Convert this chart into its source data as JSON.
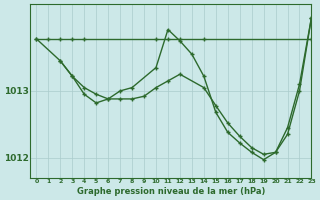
{
  "title": "Graphe pression niveau de la mer (hPa)",
  "bg_color": "#cce8e8",
  "line_color": "#2d6a2d",
  "grid_color": "#aacccc",
  "xlim": [
    -0.5,
    23
  ],
  "ylim": [
    1011.7,
    1014.3
  ],
  "yticks": [
    1012,
    1013
  ],
  "xticks": [
    0,
    1,
    2,
    3,
    4,
    5,
    6,
    7,
    8,
    9,
    10,
    11,
    12,
    13,
    14,
    15,
    16,
    17,
    18,
    19,
    20,
    21,
    22,
    23
  ],
  "series1": {
    "x": [
      0,
      1,
      2,
      3,
      4,
      10,
      11,
      12,
      14,
      23
    ],
    "y": [
      1013.78,
      1013.78,
      1013.78,
      1013.78,
      1013.78,
      1013.78,
      1013.78,
      1013.78,
      1013.78,
      1013.78
    ]
  },
  "series2": {
    "x": [
      0,
      2,
      3,
      4,
      5,
      6,
      7,
      8,
      9,
      10,
      11,
      12,
      14,
      15,
      16,
      17,
      18,
      19,
      20,
      21,
      22,
      23
    ],
    "y": [
      1013.78,
      1013.45,
      1013.22,
      1013.05,
      1012.95,
      1012.88,
      1012.88,
      1012.88,
      1012.92,
      1013.05,
      1013.15,
      1013.25,
      1013.05,
      1012.78,
      1012.52,
      1012.32,
      1012.15,
      1012.05,
      1012.08,
      1012.35,
      1013.0,
      1014.1
    ]
  },
  "series3": {
    "x": [
      2,
      3,
      4,
      5,
      6,
      7,
      8,
      10,
      11,
      12,
      13,
      14,
      15,
      16,
      17,
      18,
      19,
      20,
      21,
      22,
      23
    ],
    "y": [
      1013.45,
      1013.22,
      1012.95,
      1012.82,
      1012.88,
      1013.0,
      1013.05,
      1013.35,
      1013.92,
      1013.75,
      1013.55,
      1013.22,
      1012.68,
      1012.38,
      1012.22,
      1012.08,
      1011.97,
      1012.08,
      1012.45,
      1013.1,
      1014.1
    ]
  }
}
